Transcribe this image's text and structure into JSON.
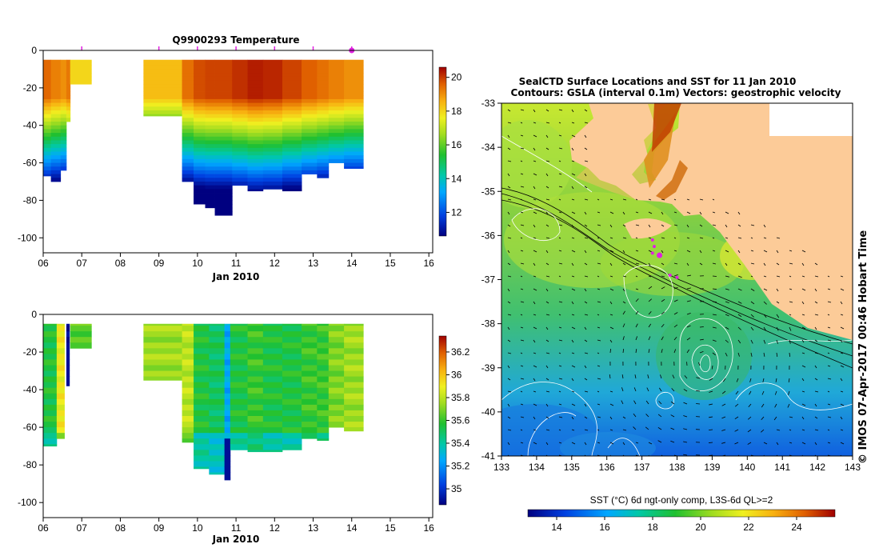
{
  "chart_data": [
    {
      "type": "heatmap",
      "title": "Q9900293  Temperature",
      "xlabel": "Jan 2010",
      "x_ticks": [
        "06",
        "07",
        "08",
        "09",
        "10",
        "11",
        "12",
        "13",
        "14",
        "15",
        "16"
      ],
      "x_range": [
        6,
        16.1
      ],
      "y_ticks": [
        "0",
        "-20",
        "-40",
        "-60",
        "-80",
        "-100"
      ],
      "y_range": [
        0,
        -108
      ],
      "colorbar": {
        "ticks": [
          "12",
          "14",
          "16",
          "18",
          "20"
        ],
        "range": [
          10.6,
          20.6
        ]
      },
      "profile_markers": [
        7,
        9,
        10,
        11,
        12,
        13,
        14
      ],
      "highlight_marker": 14,
      "segments": [
        {
          "t0": 6.0,
          "t1": 6.2,
          "depth": 67,
          "surface": 19.5
        },
        {
          "t0": 6.2,
          "t1": 6.45,
          "depth": 70,
          "surface": 19.2
        },
        {
          "t0": 6.45,
          "t1": 6.6,
          "depth": 64,
          "surface": 19.0
        },
        {
          "t0": 6.6,
          "t1": 6.7,
          "depth": 38,
          "surface": 19.3
        },
        {
          "t0": 6.7,
          "t1": 7.25,
          "depth": 18,
          "surface": 18.0
        },
        {
          "t0": 8.6,
          "t1": 9.6,
          "depth": 35,
          "surface": 18.4
        },
        {
          "t0": 9.6,
          "t1": 9.9,
          "depth": 70,
          "surface": 19.4
        },
        {
          "t0": 9.9,
          "t1": 10.2,
          "depth": 82,
          "surface": 19.8
        },
        {
          "t0": 10.2,
          "t1": 10.45,
          "depth": 84,
          "surface": 19.9
        },
        {
          "t0": 10.45,
          "t1": 10.9,
          "depth": 88,
          "surface": 19.9
        },
        {
          "t0": 10.9,
          "t1": 11.3,
          "depth": 72,
          "surface": 20.1
        },
        {
          "t0": 11.3,
          "t1": 11.7,
          "depth": 75,
          "surface": 20.3
        },
        {
          "t0": 11.7,
          "t1": 12.2,
          "depth": 74,
          "surface": 20.2
        },
        {
          "t0": 12.2,
          "t1": 12.7,
          "depth": 75,
          "surface": 19.9
        },
        {
          "t0": 12.7,
          "t1": 13.1,
          "depth": 66,
          "surface": 19.6
        },
        {
          "t0": 13.1,
          "t1": 13.4,
          "depth": 68,
          "surface": 19.4
        },
        {
          "t0": 13.4,
          "t1": 13.8,
          "depth": 60,
          "surface": 19.2
        },
        {
          "t0": 13.8,
          "t1": 14.3,
          "depth": 63,
          "surface": 19.0
        }
      ]
    },
    {
      "type": "heatmap",
      "title": "",
      "xlabel": "Jan 2010",
      "x_ticks": [
        "06",
        "07",
        "08",
        "09",
        "10",
        "11",
        "12",
        "13",
        "14",
        "15",
        "16"
      ],
      "x_range": [
        6,
        16.1
      ],
      "y_ticks": [
        "0",
        "-20",
        "-40",
        "-60",
        "-80",
        "-100"
      ],
      "y_range": [
        0,
        -108
      ],
      "colorbar": {
        "ticks": [
          "35",
          "35.2",
          "35.4",
          "35.6",
          "35.8",
          "36",
          "36.2"
        ],
        "range": [
          34.86,
          36.34
        ]
      },
      "segments": [
        {
          "t0": 6.0,
          "t1": 6.35,
          "depth": 70,
          "value": 35.55
        },
        {
          "t0": 6.35,
          "t1": 6.55,
          "depth": 66,
          "value": 35.9
        },
        {
          "t0": 6.6,
          "t1": 6.68,
          "depth": 38,
          "value": 34.9
        },
        {
          "t0": 6.7,
          "t1": 7.25,
          "depth": 18,
          "value": 35.65
        },
        {
          "t0": 8.6,
          "t1": 9.6,
          "depth": 35,
          "value": 35.75
        },
        {
          "t0": 9.6,
          "t1": 9.9,
          "depth": 68,
          "value": 35.8
        },
        {
          "t0": 9.9,
          "t1": 10.3,
          "depth": 82,
          "value": 35.55
        },
        {
          "t0": 10.3,
          "t1": 10.7,
          "depth": 85,
          "value": 35.5
        },
        {
          "t0": 10.7,
          "t1": 10.85,
          "depth": 88,
          "value": 35.25
        },
        {
          "t0": 10.85,
          "t1": 11.3,
          "depth": 72,
          "value": 35.55
        },
        {
          "t0": 11.3,
          "t1": 11.7,
          "depth": 73,
          "value": 35.6
        },
        {
          "t0": 11.7,
          "t1": 12.2,
          "depth": 73,
          "value": 35.55
        },
        {
          "t0": 12.2,
          "t1": 12.7,
          "depth": 72,
          "value": 35.55
        },
        {
          "t0": 12.7,
          "t1": 13.1,
          "depth": 66,
          "value": 35.6
        },
        {
          "t0": 13.1,
          "t1": 13.4,
          "depth": 67,
          "value": 35.6
        },
        {
          "t0": 13.4,
          "t1": 13.8,
          "depth": 60,
          "value": 35.7
        },
        {
          "t0": 13.8,
          "t1": 14.3,
          "depth": 62,
          "value": 35.75
        }
      ]
    },
    {
      "type": "heatmap",
      "title": "SealCTD Surface Locations and SST for 11 Jan 2010",
      "subtitle": "Contours: GSLA (interval 0.1m) Vectors: geostrophic velocity",
      "x_ticks": [
        "133",
        "134",
        "135",
        "136",
        "137",
        "138",
        "139",
        "140",
        "141",
        "142",
        "143"
      ],
      "x_range": [
        133,
        143
      ],
      "y_ticks": [
        "-33",
        "-34",
        "-35",
        "-36",
        "-37",
        "-38",
        "-39",
        "-40",
        "-41"
      ],
      "y_range": [
        -33,
        -41
      ],
      "colorbar_label": "SST (°C) 6d ngt-only comp, L3S-6d QL>=2",
      "colorbar": {
        "ticks": [
          "14",
          "16",
          "18",
          "20",
          "22",
          "24"
        ],
        "range": [
          12.8,
          25.6
        ]
      },
      "seal_locations": [
        {
          "lon": 137.3,
          "lat": -36.1
        },
        {
          "lon": 137.35,
          "lat": -36.25
        },
        {
          "lon": 137.3,
          "lat": -36.4
        },
        {
          "lon": 137.5,
          "lat": -36.45
        },
        {
          "lon": 137.8,
          "lat": -36.9
        },
        {
          "lon": 138.0,
          "lat": -36.95
        }
      ],
      "side_label": "© IMOS 07-Apr-2017 00:46 Hobart Time"
    }
  ],
  "colors": {
    "land": "#fccb98",
    "marker": "#e020e0",
    "contour": "#ffffff",
    "bathy": "#000000"
  }
}
